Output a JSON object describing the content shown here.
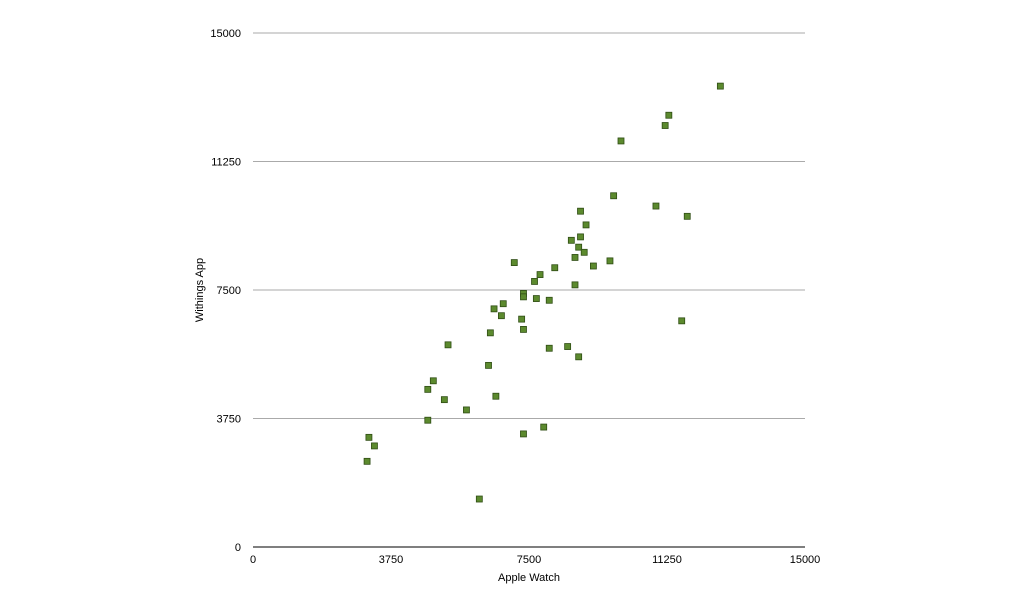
{
  "chart_data": {
    "type": "scatter",
    "title": "",
    "xlabel": "Apple Watch",
    "ylabel": "Withings App",
    "xlim": [
      0,
      15000
    ],
    "ylim": [
      0,
      15000
    ],
    "xticks": [
      0,
      3750,
      7500,
      11250,
      15000
    ],
    "yticks": [
      0,
      3750,
      7500,
      11250,
      15000
    ],
    "xtick_labels": [
      "0",
      "3750",
      "7500",
      "11250",
      "15000"
    ],
    "ytick_labels": [
      "0",
      "3750",
      "7500",
      "11250",
      "15000"
    ],
    "grid": "horizontal",
    "marker_color": "#5c8a2e",
    "marker_edge_color": "#2f4d14",
    "gridline_color": "#aaaaaa",
    "series": [
      {
        "points": [
          [
            12700,
            13450
          ],
          [
            11300,
            12600
          ],
          [
            11200,
            12300
          ],
          [
            10000,
            11850
          ],
          [
            9800,
            10250
          ],
          [
            10950,
            9950
          ],
          [
            11800,
            9650
          ],
          [
            8900,
            9800
          ],
          [
            9050,
            9400
          ],
          [
            8900,
            9050
          ],
          [
            8650,
            8950
          ],
          [
            8850,
            8750
          ],
          [
            9000,
            8600
          ],
          [
            8750,
            8450
          ],
          [
            9250,
            8200
          ],
          [
            9700,
            8350
          ],
          [
            7100,
            8300
          ],
          [
            8200,
            8150
          ],
          [
            7800,
            7950
          ],
          [
            7650,
            7750
          ],
          [
            8750,
            7650
          ],
          [
            7350,
            7400
          ],
          [
            7350,
            7300
          ],
          [
            7700,
            7250
          ],
          [
            8050,
            7200
          ],
          [
            6800,
            7100
          ],
          [
            6550,
            6950
          ],
          [
            6750,
            6750
          ],
          [
            7300,
            6650
          ],
          [
            7350,
            6350
          ],
          [
            6450,
            6250
          ],
          [
            11650,
            6600
          ],
          [
            5300,
            5900
          ],
          [
            8550,
            5850
          ],
          [
            8050,
            5800
          ],
          [
            8850,
            5550
          ],
          [
            6400,
            5300
          ],
          [
            4900,
            4850
          ],
          [
            4750,
            4600
          ],
          [
            5200,
            4300
          ],
          [
            6600,
            4400
          ],
          [
            5800,
            4000
          ],
          [
            4750,
            3700
          ],
          [
            7900,
            3500
          ],
          [
            7350,
            3300
          ],
          [
            3150,
            3200
          ],
          [
            3300,
            2950
          ],
          [
            3100,
            2500
          ],
          [
            6150,
            1400
          ]
        ]
      }
    ]
  }
}
